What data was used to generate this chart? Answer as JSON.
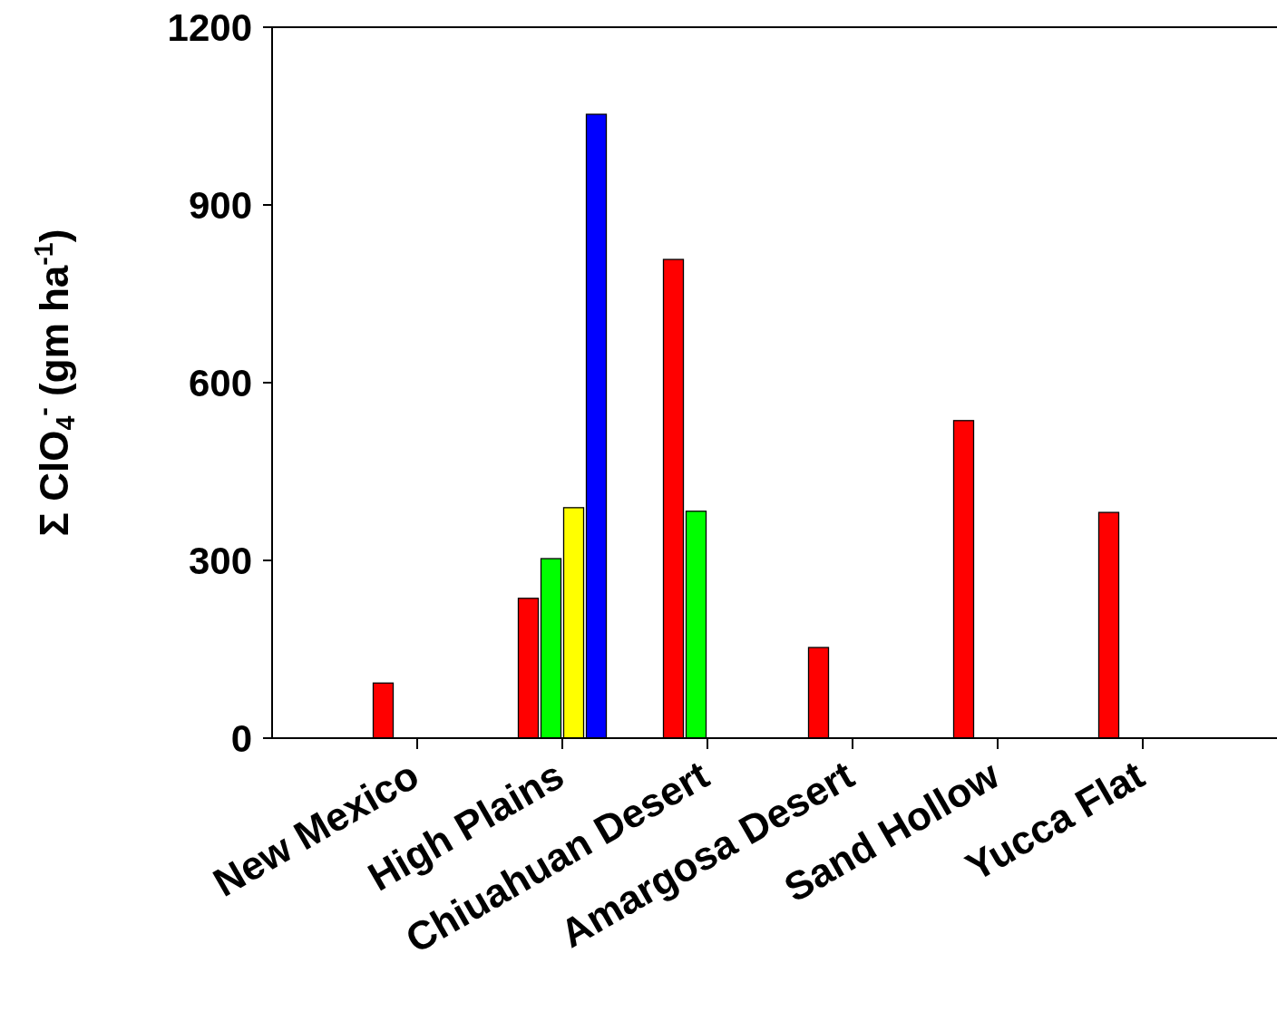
{
  "chart_data": {
    "type": "bar",
    "ylabel": "Σ ClO$_{4}$$^{-}$ (gm ha$^{-1}$)",
    "categories": [
      "New Mexico",
      "High Plains",
      "Chiuahuan Desert",
      "Amargosa Desert",
      "Sand Hollow",
      "Yucca Flat"
    ],
    "series": [
      {
        "color": "#ff0000",
        "values": [
          93,
          236,
          808,
          153,
          536,
          381
        ]
      },
      {
        "color": "#00ff00",
        "values": [
          null,
          303,
          383,
          null,
          null,
          null
        ]
      },
      {
        "color": "#ffff00",
        "values": [
          null,
          389,
          null,
          null,
          null,
          null
        ]
      },
      {
        "color": "#0000ff",
        "values": [
          null,
          1053,
          null,
          null,
          null,
          null
        ]
      }
    ],
    "ylim": [
      0,
      1200
    ],
    "yticks": [
      0,
      300,
      600,
      900,
      1200
    ],
    "grid": false
  }
}
